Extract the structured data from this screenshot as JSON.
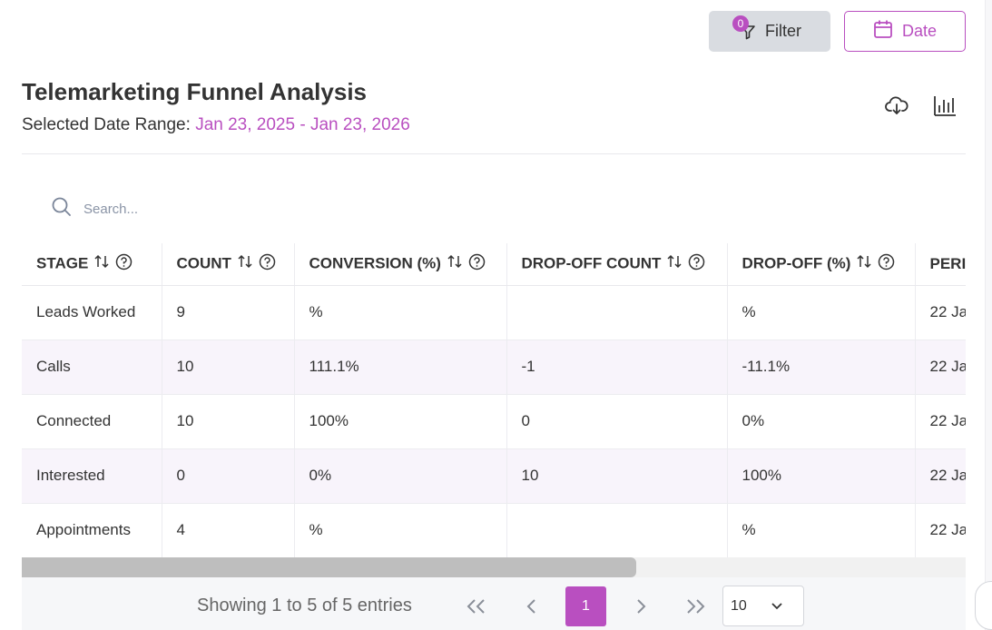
{
  "toolbar": {
    "filter_label": "Filter",
    "filter_badge": "0",
    "date_label": "Date"
  },
  "header": {
    "title": "Telemarketing Funnel Analysis",
    "subtitle_prefix": "Selected Date Range: ",
    "date_range": "Jan 23, 2025 - Jan 23, 2026"
  },
  "search": {
    "placeholder": "Search..."
  },
  "table": {
    "columns": [
      "STAGE",
      "COUNT",
      "CONVERSION (%)",
      "DROP-OFF COUNT",
      "DROP-OFF (%)",
      "PERI"
    ],
    "rows": [
      [
        "Leads Worked",
        "9",
        "%",
        "",
        "%",
        "22 Ja"
      ],
      [
        "Calls",
        "10",
        "111.1%",
        "-1",
        "-11.1%",
        "22 Ja"
      ],
      [
        "Connected",
        "10",
        "100%",
        "0",
        "0%",
        "22 Ja"
      ],
      [
        "Interested",
        "0",
        "0%",
        "10",
        "100%",
        "22 Ja"
      ],
      [
        "Appointments",
        "4",
        "%",
        "",
        "%",
        "22 Ja"
      ]
    ]
  },
  "pagination": {
    "entries_text": "Showing 1 to 5 of 5 entries",
    "current_page": "1",
    "page_size": "10"
  },
  "colors": {
    "accent": "#b94fc0",
    "filter_bg": "#d9dce1"
  }
}
